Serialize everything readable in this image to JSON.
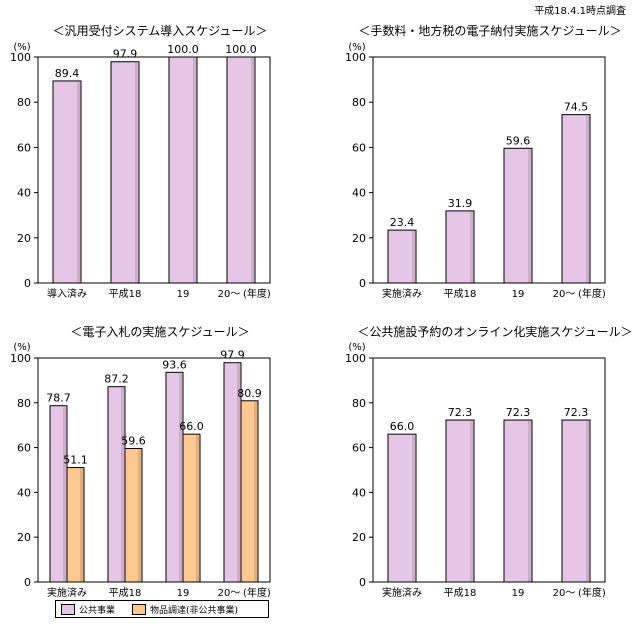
{
  "survey_note": "平成18.4.1時点調査",
  "colors": {
    "public": "#E6C6E6",
    "nonpublic": "#FFC890"
  },
  "legend": {
    "public": "公共事業",
    "nonpublic": "物品調達(非公共事業)"
  },
  "chart_data": [
    {
      "type": "bar",
      "title": "＜汎用受付システム導入スケジュール＞",
      "ylabel": "(%)",
      "ylim": [
        0,
        100
      ],
      "yticks": [
        0,
        20,
        40,
        60,
        80,
        100
      ],
      "categories": [
        "導入済み",
        "平成18",
        "19",
        "20～"
      ],
      "xunit": "(年度)",
      "series": [
        {
          "key": "public",
          "values": [
            "89.4",
            "97.9",
            "100.0",
            "100.0"
          ]
        }
      ]
    },
    {
      "type": "bar",
      "title": "＜手数料・地方税の電子納付実施スケジュール＞",
      "ylabel": "(%)",
      "ylim": [
        0,
        100
      ],
      "yticks": [
        0,
        20,
        40,
        60,
        80,
        100
      ],
      "categories": [
        "実施済み",
        "平成18",
        "19",
        "20～"
      ],
      "xunit": "(年度)",
      "series": [
        {
          "key": "public",
          "values": [
            "23.4",
            "31.9",
            "59.6",
            "74.5"
          ]
        }
      ]
    },
    {
      "type": "bar",
      "title": "＜電子入札の実施スケジュール＞",
      "ylabel": "(%)",
      "ylim": [
        0,
        100
      ],
      "yticks": [
        0,
        20,
        40,
        60,
        80,
        100
      ],
      "categories": [
        "実施済み",
        "平成18",
        "19",
        "20～"
      ],
      "xunit": "(年度)",
      "series": [
        {
          "key": "public",
          "name": "公共事業",
          "values": [
            "78.7",
            "87.2",
            "93.6",
            "97.9"
          ]
        },
        {
          "key": "nonpublic",
          "name": "物品調達(非公共事業)",
          "values": [
            "51.1",
            "59.6",
            "66.0",
            "80.9"
          ]
        }
      ]
    },
    {
      "type": "bar",
      "title": "＜公共施設予約のオンライン化実施スケジュール＞",
      "ylabel": "(%)",
      "ylim": [
        0,
        100
      ],
      "yticks": [
        0,
        20,
        40,
        60,
        80,
        100
      ],
      "categories": [
        "実施済み",
        "平成18",
        "19",
        "20～"
      ],
      "xunit": "(年度)",
      "series": [
        {
          "key": "public",
          "values": [
            "66.0",
            "72.3",
            "72.3",
            "72.3"
          ]
        }
      ]
    }
  ]
}
